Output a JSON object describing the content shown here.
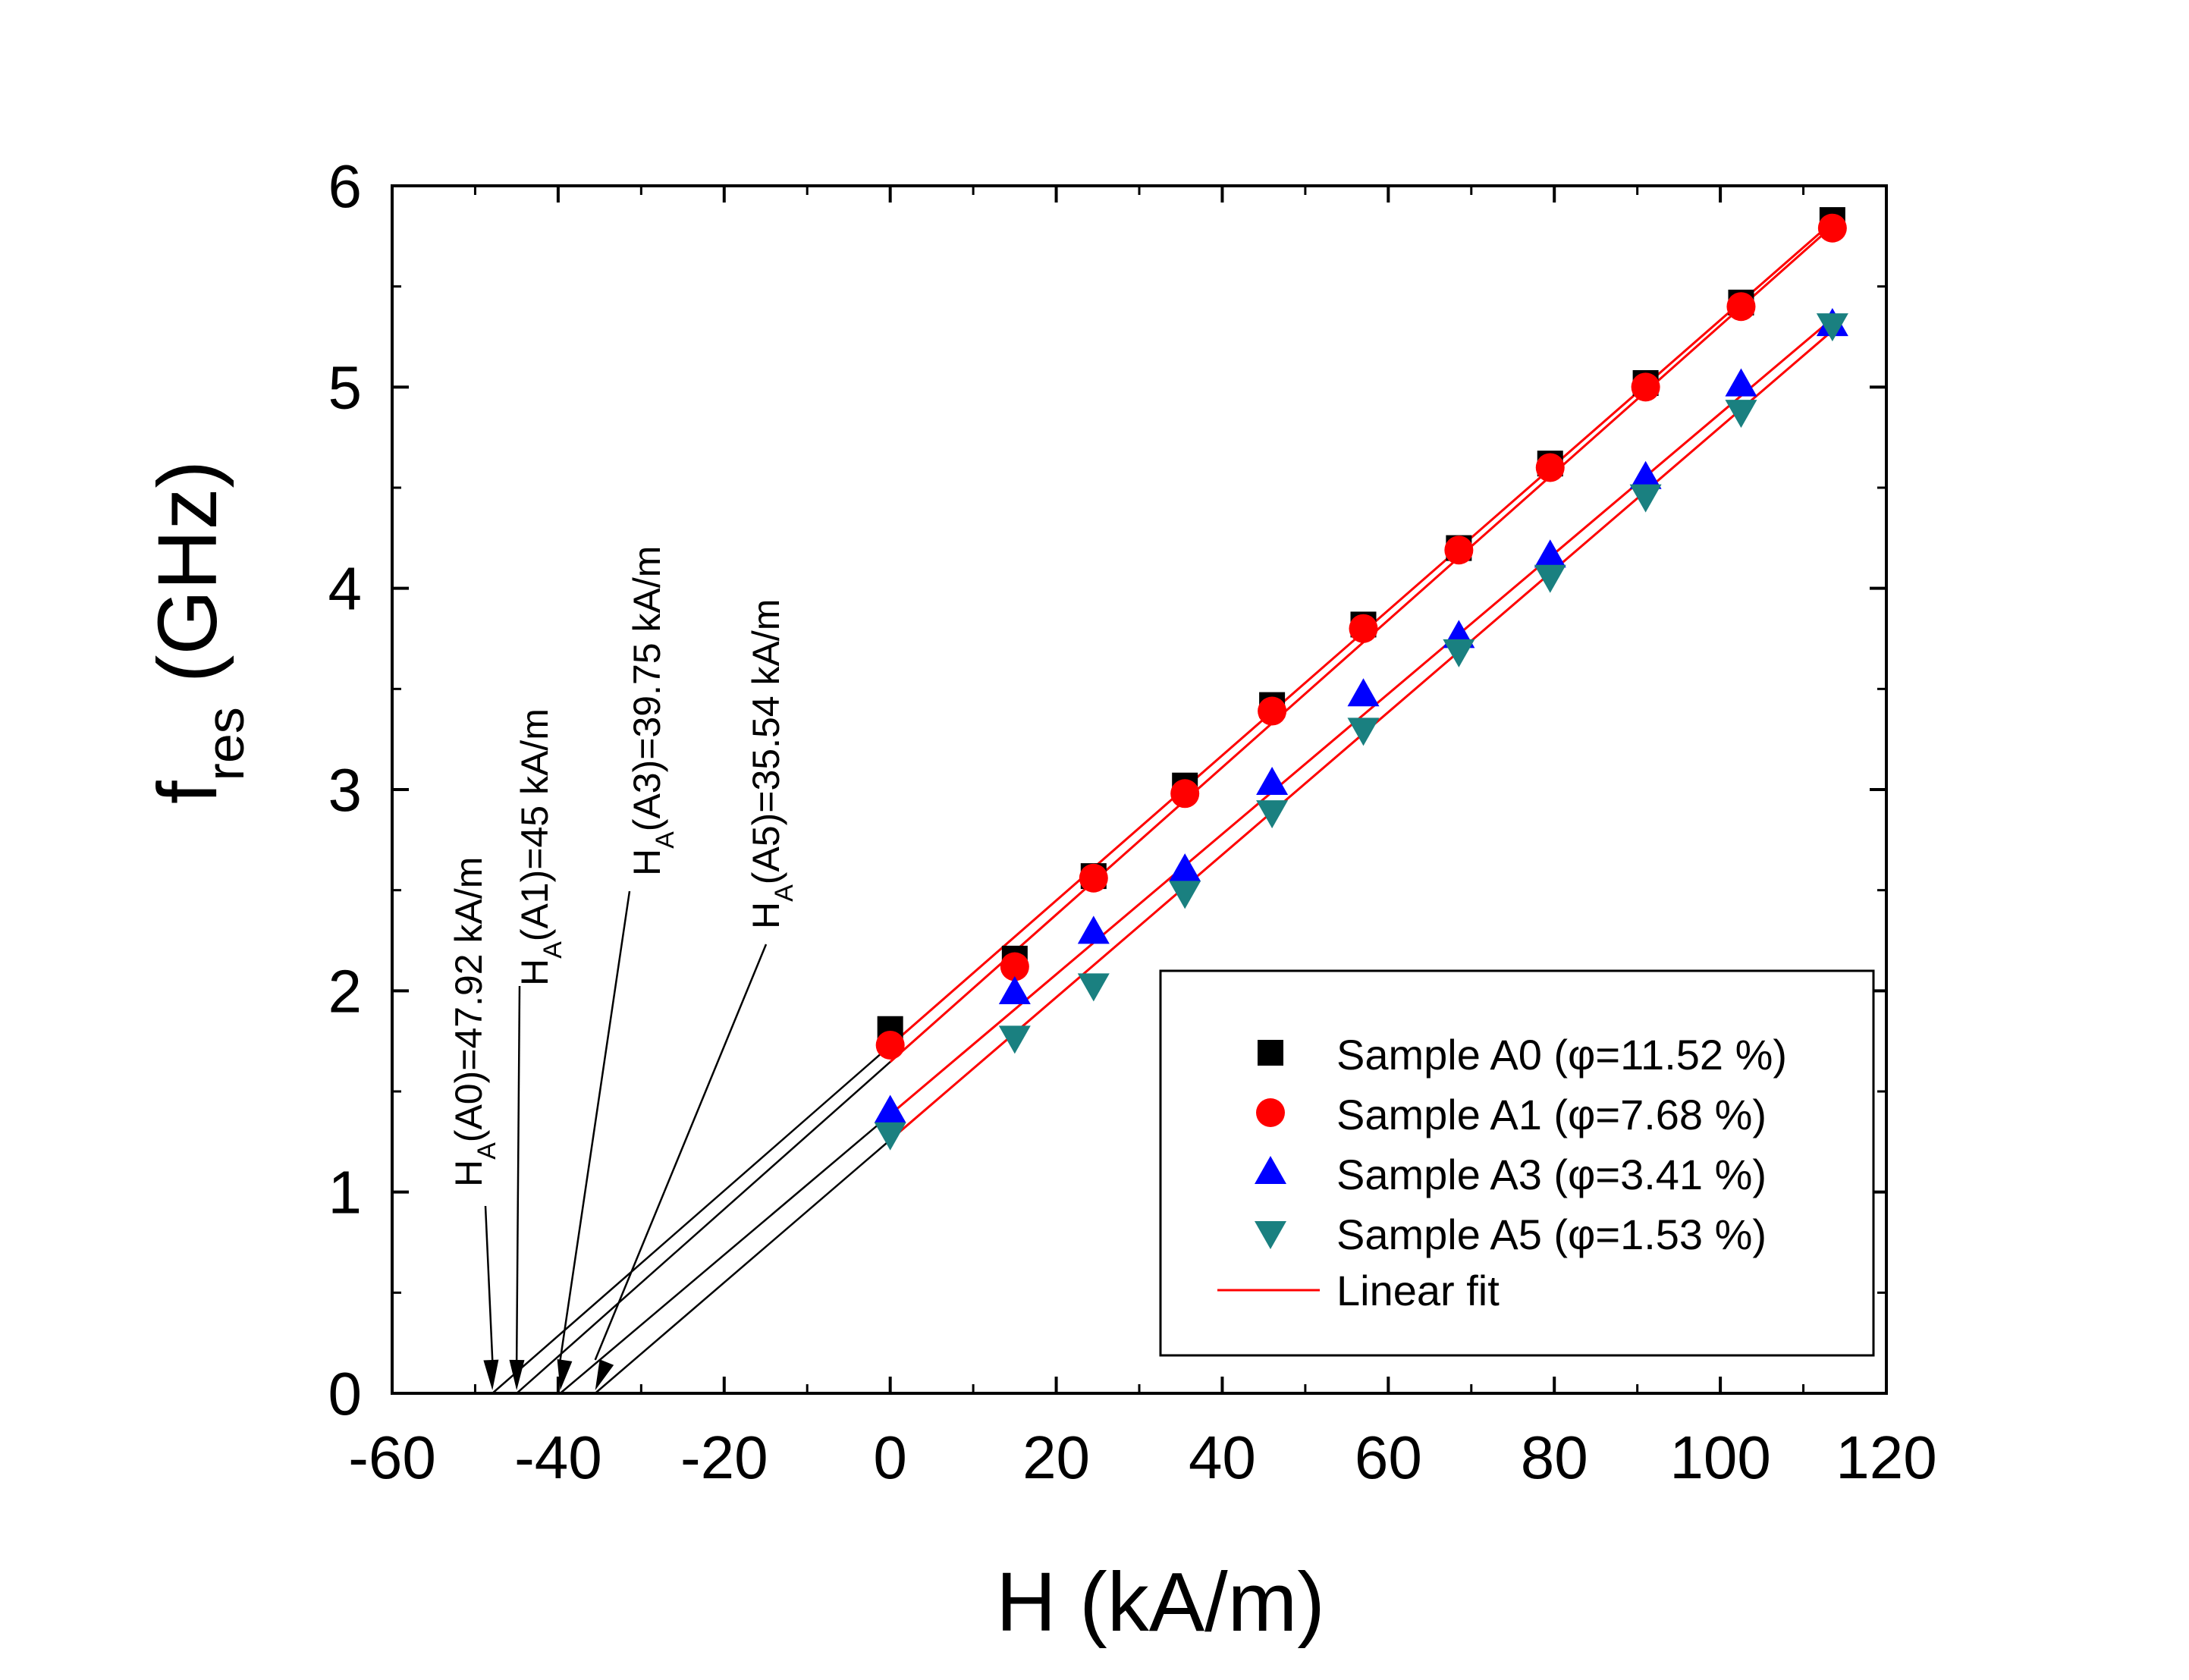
{
  "chart_data": {
    "type": "scatter",
    "xlabel": "H (kA/m)",
    "ylabel": {
      "main": "f",
      "sub": "res",
      "unit": "(GHz)"
    },
    "xlim": [
      -60,
      120
    ],
    "ylim": [
      0,
      6
    ],
    "xticks": [
      -60,
      -40,
      -20,
      0,
      20,
      40,
      60,
      80,
      100,
      120
    ],
    "yticks": [
      0,
      1,
      2,
      3,
      4,
      5,
      6
    ],
    "legend_position": "lower-right",
    "series": [
      {
        "name": "Sample A0",
        "phi": "=11.52 %",
        "marker": "square",
        "color": "#000000",
        "x": [
          0,
          15,
          24.5,
          35.5,
          46,
          57,
          68.5,
          79.5,
          91,
          102.5,
          113.5
        ],
        "y": [
          1.81,
          2.16,
          2.57,
          3.02,
          3.42,
          3.82,
          4.2,
          4.62,
          5.02,
          5.42,
          5.83
        ],
        "fit": {
          "x": [
            -47.92,
            113.5
          ],
          "y": [
            0,
            5.82
          ]
        }
      },
      {
        "name": "Sample A1",
        "phi": "=7.68 %",
        "marker": "circle",
        "color": "#ff0000",
        "x": [
          0,
          15,
          24.5,
          35.5,
          46,
          57,
          68.5,
          79.5,
          91,
          102.5,
          113.5
        ],
        "y": [
          1.73,
          2.12,
          2.56,
          2.98,
          3.39,
          3.8,
          4.19,
          4.6,
          5.0,
          5.4,
          5.79
        ],
        "fit": {
          "x": [
            -45,
            113.5
          ],
          "y": [
            0,
            5.8
          ]
        }
      },
      {
        "name": "Sample A3",
        "phi": "=3.41 %",
        "marker": "triangle-up",
        "color": "#0000ff",
        "x": [
          0,
          15,
          24.5,
          35.5,
          46,
          57,
          68.5,
          79.5,
          91,
          102.5,
          113.5
        ],
        "y": [
          1.4,
          1.99,
          2.29,
          2.6,
          3.03,
          3.47,
          3.76,
          4.16,
          4.55,
          5.01,
          5.31
        ],
        "fit": {
          "x": [
            -39.75,
            113.5
          ],
          "y": [
            0,
            5.34
          ]
        }
      },
      {
        "name": "Sample A5",
        "phi": "=1.53 %",
        "marker": "triangle-down",
        "color": "#1a8080",
        "x": [
          0,
          15,
          24.5,
          35.5,
          46,
          57,
          68.5,
          79.5,
          91,
          102.5,
          113.5
        ],
        "y": [
          1.29,
          1.77,
          2.03,
          2.49,
          2.89,
          3.3,
          3.69,
          4.06,
          4.46,
          4.88,
          5.31
        ],
        "fit": {
          "x": [
            -35.54,
            113.5
          ],
          "y": [
            0,
            5.28
          ]
        }
      }
    ],
    "fit_legend_label": "Linear fit",
    "fit_color": "#ff0000",
    "annotations": [
      {
        "main": "H",
        "sub": "A",
        "rest": "(A0)=47.92 kA/m",
        "x": -47.92
      },
      {
        "main": "H",
        "sub": "A",
        "rest": "(A1)=45 kA/m",
        "x": -45
      },
      {
        "main": "H",
        "sub": "A",
        "rest": "(A3)=39.75 kA/m",
        "x": -39.75
      },
      {
        "main": "H",
        "sub": "A",
        "rest": "(A5)=35.54 kA/m",
        "x": -35.54
      }
    ],
    "legend_phi_symbol": "φ"
  }
}
